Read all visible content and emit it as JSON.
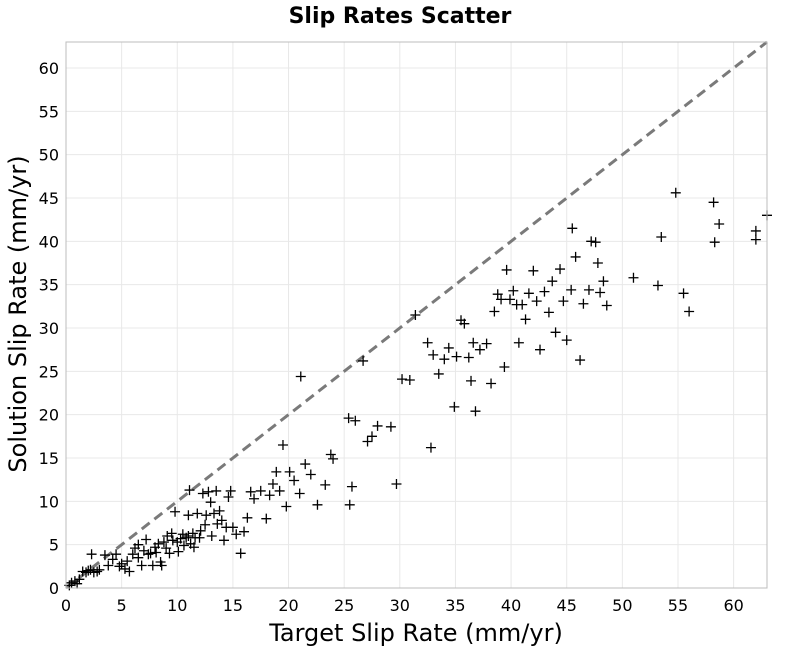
{
  "chart_data": {
    "type": "scatter",
    "title": "Slip Rates Scatter",
    "xlabel": "Target Slip Rate (mm/yr)",
    "ylabel": "Solution Slip Rate (mm/yr)",
    "xlim": [
      0,
      63
    ],
    "ylim": [
      0,
      63
    ],
    "xticks": [
      0,
      5,
      10,
      15,
      20,
      25,
      30,
      35,
      40,
      45,
      50,
      55,
      60
    ],
    "yticks": [
      0,
      5,
      10,
      15,
      20,
      25,
      30,
      35,
      40,
      45,
      50,
      55,
      60
    ],
    "xtick_labels": [
      "0",
      "5",
      "10",
      "15",
      "20",
      "25",
      "30",
      "35",
      "40",
      "45",
      "50",
      "55",
      "60"
    ],
    "ytick_labels": [
      "0",
      "5",
      "10",
      "15",
      "20",
      "25",
      "30",
      "35",
      "40",
      "45",
      "50",
      "55",
      "60"
    ],
    "grid": true,
    "marker": "plus",
    "marker_color": "#000000",
    "reference_line": {
      "from": [
        0,
        0
      ],
      "to": [
        63,
        63
      ],
      "style": "dashed",
      "color": "#7a7a7a"
    },
    "points": [
      [
        0.3,
        0.3
      ],
      [
        0.5,
        0.6
      ],
      [
        0.8,
        0.8
      ],
      [
        1.0,
        0.5
      ],
      [
        1.2,
        1.0
      ],
      [
        1.5,
        1.9
      ],
      [
        1.8,
        1.8
      ],
      [
        2.0,
        2.0
      ],
      [
        2.2,
        2.1
      ],
      [
        2.3,
        3.9
      ],
      [
        2.5,
        1.8
      ],
      [
        2.8,
        1.9
      ],
      [
        3.0,
        2.1
      ],
      [
        3.5,
        3.8
      ],
      [
        3.8,
        2.6
      ],
      [
        4.2,
        3.3
      ],
      [
        4.5,
        3.9
      ],
      [
        4.8,
        2.5
      ],
      [
        5.0,
        2.8
      ],
      [
        5.3,
        2.2
      ],
      [
        5.5,
        3.1
      ],
      [
        5.7,
        1.9
      ],
      [
        6.0,
        3.9
      ],
      [
        6.2,
        4.6
      ],
      [
        6.5,
        5.0
      ],
      [
        6.5,
        3.5
      ],
      [
        6.8,
        2.6
      ],
      [
        7.0,
        4.3
      ],
      [
        7.2,
        5.6
      ],
      [
        7.4,
        3.9
      ],
      [
        7.6,
        4.0
      ],
      [
        7.8,
        2.6
      ],
      [
        8.0,
        4.7
      ],
      [
        8.1,
        4.1
      ],
      [
        8.3,
        5.1
      ],
      [
        8.5,
        3.0
      ],
      [
        8.6,
        2.6
      ],
      [
        8.8,
        5.3
      ],
      [
        9.0,
        4.6
      ],
      [
        9.1,
        6.0
      ],
      [
        9.3,
        4.0
      ],
      [
        9.5,
        6.3
      ],
      [
        9.6,
        5.5
      ],
      [
        9.8,
        8.8
      ],
      [
        10.0,
        5.3
      ],
      [
        10.1,
        4.2
      ],
      [
        10.3,
        5.7
      ],
      [
        10.5,
        6.2
      ],
      [
        10.6,
        4.9
      ],
      [
        10.8,
        5.8
      ],
      [
        11.0,
        6.0
      ],
      [
        11.0,
        8.4
      ],
      [
        11.1,
        11.3
      ],
      [
        11.2,
        5.1
      ],
      [
        11.4,
        6.3
      ],
      [
        11.5,
        4.7
      ],
      [
        11.6,
        5.8
      ],
      [
        11.8,
        8.6
      ],
      [
        12.0,
        5.8
      ],
      [
        12.1,
        6.6
      ],
      [
        12.3,
        10.9
      ],
      [
        12.5,
        7.3
      ],
      [
        12.6,
        8.4
      ],
      [
        12.8,
        11.1
      ],
      [
        13.0,
        9.9
      ],
      [
        13.1,
        6.0
      ],
      [
        13.3,
        8.6
      ],
      [
        13.5,
        11.2
      ],
      [
        13.6,
        7.4
      ],
      [
        13.8,
        8.9
      ],
      [
        14.0,
        7.8
      ],
      [
        14.2,
        5.5
      ],
      [
        14.4,
        7.0
      ],
      [
        14.6,
        10.5
      ],
      [
        14.8,
        11.2
      ],
      [
        15.0,
        7.0
      ],
      [
        15.3,
        6.2
      ],
      [
        15.7,
        4.0
      ],
      [
        16.0,
        6.5
      ],
      [
        16.3,
        8.1
      ],
      [
        16.6,
        11.1
      ],
      [
        16.9,
        10.3
      ],
      [
        17.5,
        11.2
      ],
      [
        18.0,
        8.0
      ],
      [
        18.3,
        10.7
      ],
      [
        18.6,
        12.0
      ],
      [
        18.9,
        13.4
      ],
      [
        19.2,
        11.2
      ],
      [
        19.5,
        16.5
      ],
      [
        19.8,
        9.4
      ],
      [
        20.1,
        13.4
      ],
      [
        20.5,
        12.4
      ],
      [
        21.0,
        10.9
      ],
      [
        21.1,
        24.4
      ],
      [
        21.5,
        14.3
      ],
      [
        22.0,
        13.1
      ],
      [
        22.6,
        9.6
      ],
      [
        23.3,
        11.9
      ],
      [
        23.8,
        15.4
      ],
      [
        24.0,
        14.9
      ],
      [
        25.4,
        19.6
      ],
      [
        25.5,
        9.6
      ],
      [
        25.7,
        11.7
      ],
      [
        26.0,
        19.3
      ],
      [
        26.7,
        26.2
      ],
      [
        27.1,
        16.9
      ],
      [
        27.5,
        17.5
      ],
      [
        28.0,
        18.7
      ],
      [
        29.2,
        18.6
      ],
      [
        29.7,
        12.0
      ],
      [
        30.2,
        24.1
      ],
      [
        30.9,
        24.0
      ],
      [
        31.4,
        31.5
      ],
      [
        32.5,
        28.3
      ],
      [
        32.8,
        16.2
      ],
      [
        33.0,
        26.9
      ],
      [
        33.5,
        24.7
      ],
      [
        34.0,
        26.4
      ],
      [
        34.4,
        27.7
      ],
      [
        34.9,
        20.9
      ],
      [
        35.1,
        26.7
      ],
      [
        35.5,
        30.9
      ],
      [
        35.8,
        30.5
      ],
      [
        36.2,
        26.6
      ],
      [
        36.4,
        23.9
      ],
      [
        36.6,
        28.3
      ],
      [
        36.8,
        20.4
      ],
      [
        37.2,
        27.5
      ],
      [
        37.8,
        28.2
      ],
      [
        38.2,
        23.6
      ],
      [
        38.5,
        31.9
      ],
      [
        38.8,
        33.9
      ],
      [
        39.1,
        33.3
      ],
      [
        39.4,
        25.5
      ],
      [
        39.6,
        36.7
      ],
      [
        39.9,
        33.3
      ],
      [
        40.2,
        34.3
      ],
      [
        40.5,
        32.7
      ],
      [
        40.7,
        28.3
      ],
      [
        41.0,
        32.7
      ],
      [
        41.3,
        31.0
      ],
      [
        41.6,
        34.0
      ],
      [
        42.0,
        36.6
      ],
      [
        42.3,
        33.1
      ],
      [
        42.6,
        27.5
      ],
      [
        43.0,
        34.2
      ],
      [
        43.4,
        31.8
      ],
      [
        43.7,
        35.4
      ],
      [
        44.0,
        29.5
      ],
      [
        44.4,
        36.8
      ],
      [
        44.7,
        33.1
      ],
      [
        45.0,
        28.6
      ],
      [
        45.4,
        34.4
      ],
      [
        45.5,
        41.5
      ],
      [
        45.8,
        38.2
      ],
      [
        46.2,
        26.3
      ],
      [
        46.5,
        32.8
      ],
      [
        47.0,
        34.4
      ],
      [
        47.2,
        40.0
      ],
      [
        47.6,
        39.9
      ],
      [
        47.8,
        37.5
      ],
      [
        48.0,
        34.1
      ],
      [
        48.3,
        35.4
      ],
      [
        48.6,
        32.6
      ],
      [
        51.0,
        35.8
      ],
      [
        53.2,
        34.9
      ],
      [
        53.5,
        40.5
      ],
      [
        54.8,
        45.6
      ],
      [
        55.5,
        34.0
      ],
      [
        56.0,
        31.9
      ],
      [
        58.2,
        44.5
      ],
      [
        58.3,
        39.9
      ],
      [
        58.7,
        42.0
      ],
      [
        62.0,
        41.2
      ],
      [
        62.0,
        40.2
      ],
      [
        63.0,
        43.0
      ]
    ]
  }
}
